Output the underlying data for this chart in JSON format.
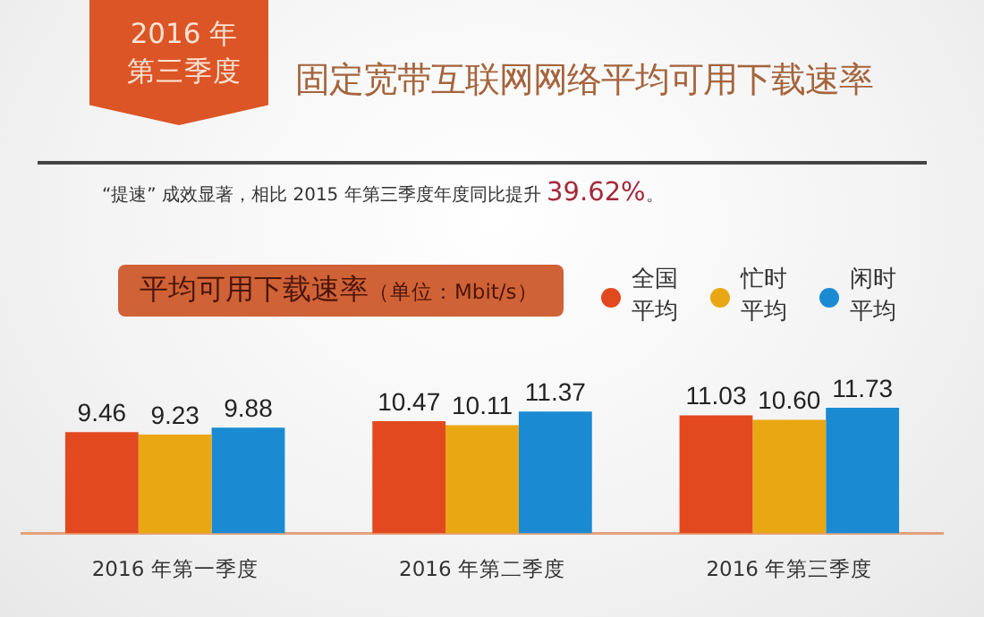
{
  "chart_data": {
    "type": "bar",
    "title": "固定宽带互联网网络平均可用下载速率",
    "subtitle": "“提速” 成效显著，相比 2015 年第三季度年度同比提升 39.62%。",
    "ylabel": "平均可用下载速率（单位：Mbit/s）",
    "annotations": [
      "2016 年第三季度"
    ],
    "categories": [
      "2016 年第一季度",
      "2016 年第二季度",
      "2016 年第三季度"
    ],
    "series": [
      {
        "name": "全国平均",
        "color": "#e2491f",
        "values": [
          9.46,
          10.47,
          11.03
        ],
        "value_labels": [
          "9.46",
          "10.47",
          "11.03"
        ]
      },
      {
        "name": "忙时平均",
        "color": "#e9a713",
        "values": [
          9.23,
          10.11,
          10.6
        ],
        "value_labels": [
          "9.23",
          "10.11",
          "10.60"
        ]
      },
      {
        "name": "闲时平均",
        "color": "#1a8bd3",
        "values": [
          9.88,
          11.37,
          11.73
        ],
        "value_labels": [
          "9.88",
          "11.37",
          "11.73"
        ]
      }
    ],
    "tick_labels": "x",
    "legend": "top right"
  }
}
